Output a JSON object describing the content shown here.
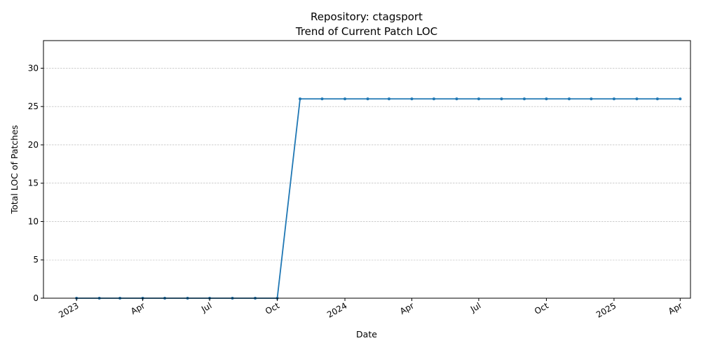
{
  "chart_data": {
    "type": "line",
    "title": "Repository: ctagsport",
    "subtitle": "Trend of Current Patch LOC",
    "xlabel": "Date",
    "ylabel": "Total LOC of Patches",
    "xlim": [
      "2022-11-17",
      "2025-04-15"
    ],
    "ylim": [
      0,
      33.6
    ],
    "grid": "y-dashed",
    "x_ticks": [
      {
        "date": "2023-01-01",
        "label": "2023"
      },
      {
        "date": "2023-04-01",
        "label": "Apr"
      },
      {
        "date": "2023-07-01",
        "label": "Jul"
      },
      {
        "date": "2023-10-01",
        "label": "Oct"
      },
      {
        "date": "2024-01-01",
        "label": "2024"
      },
      {
        "date": "2024-04-01",
        "label": "Apr"
      },
      {
        "date": "2024-07-01",
        "label": "Jul"
      },
      {
        "date": "2024-10-01",
        "label": "Oct"
      },
      {
        "date": "2025-01-01",
        "label": "2025"
      },
      {
        "date": "2025-04-01",
        "label": "Apr"
      }
    ],
    "y_ticks": [
      0,
      5,
      10,
      15,
      20,
      25,
      30
    ],
    "series": [
      {
        "color": "#1f77b4",
        "x": [
          "2023-01-01",
          "2023-02-01",
          "2023-03-01",
          "2023-04-01",
          "2023-05-01",
          "2023-06-01",
          "2023-07-01",
          "2023-08-01",
          "2023-09-01",
          "2023-10-01",
          "2023-11-01",
          "2023-12-01",
          "2024-01-01",
          "2024-02-01",
          "2024-03-01",
          "2024-04-01",
          "2024-05-01",
          "2024-06-01",
          "2024-07-01",
          "2024-08-01",
          "2024-09-01",
          "2024-10-01",
          "2024-11-01",
          "2024-12-01",
          "2025-01-01",
          "2025-02-01",
          "2025-03-01",
          "2025-04-01"
        ],
        "values": [
          0,
          0,
          0,
          0,
          0,
          0,
          0,
          0,
          0,
          0,
          26,
          26,
          26,
          26,
          26,
          26,
          26,
          26,
          26,
          26,
          26,
          26,
          26,
          26,
          26,
          26,
          26,
          26
        ]
      }
    ]
  }
}
